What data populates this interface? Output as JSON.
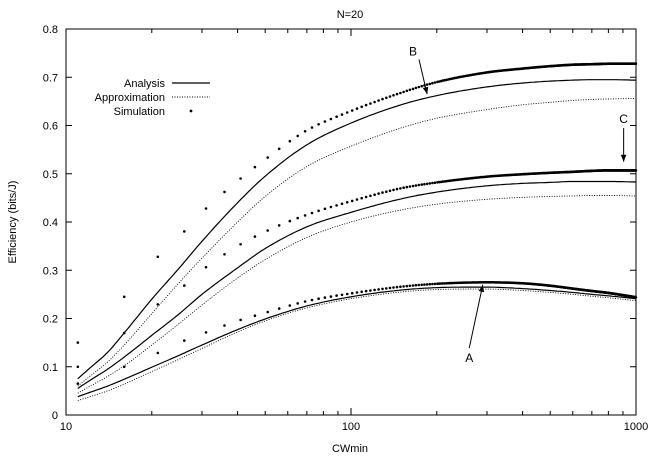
{
  "chart_data": {
    "type": "line",
    "title": "N=20",
    "xlabel": "CWmin",
    "ylabel": "Efficiency (bits/J)",
    "xscale": "log",
    "xlim": [
      10,
      1000
    ],
    "ylim": [
      0,
      0.8
    ],
    "xticks": [
      10,
      100,
      1000
    ],
    "yticks": [
      0,
      0.1,
      0.2,
      0.3,
      0.4,
      0.5,
      0.6,
      0.7,
      0.8
    ],
    "grid": false,
    "legend_position": "top-left",
    "legend": [
      "Analysis",
      "Approximation",
      "Simulation"
    ],
    "annotations": [
      {
        "label": "A",
        "x": 260,
        "y": 0.11,
        "target_x": 290,
        "target_y": 0.27
      },
      {
        "label": "B",
        "x": 165,
        "y": 0.745,
        "target_x": 185,
        "target_y": 0.665
      },
      {
        "label": "C",
        "x": 905,
        "y": 0.605,
        "target_x": 905,
        "target_y": 0.525
      }
    ],
    "x_sample": [
      11,
      12,
      14,
      16,
      20,
      25,
      30,
      40,
      50,
      70,
      100,
      150,
      200,
      300,
      400,
      500,
      600,
      700,
      800,
      1000
    ],
    "groups": [
      {
        "label": "A",
        "analysis": [
          0.038,
          0.046,
          0.06,
          0.074,
          0.099,
          0.124,
          0.145,
          0.177,
          0.199,
          0.226,
          0.245,
          0.259,
          0.264,
          0.265,
          0.262,
          0.258,
          0.254,
          0.25,
          0.247,
          0.241
        ],
        "approximation": [
          0.03,
          0.037,
          0.05,
          0.064,
          0.09,
          0.116,
          0.138,
          0.172,
          0.195,
          0.222,
          0.241,
          0.255,
          0.26,
          0.261,
          0.258,
          0.254,
          0.25,
          0.246,
          0.243,
          0.237
        ],
        "simulation": [
          0.065,
          0.075,
          0.085,
          0.1,
          0.123,
          0.15,
          0.168,
          0.195,
          0.212,
          0.236,
          0.252,
          0.266,
          0.272,
          0.275,
          0.273,
          0.268,
          0.262,
          0.257,
          0.253,
          0.244
        ]
      },
      {
        "label": "C",
        "analysis": [
          0.055,
          0.07,
          0.095,
          0.12,
          0.165,
          0.21,
          0.25,
          0.305,
          0.345,
          0.39,
          0.42,
          0.448,
          0.462,
          0.475,
          0.48,
          0.482,
          0.484,
          0.484,
          0.484,
          0.483
        ],
        "approximation": [
          0.045,
          0.058,
          0.08,
          0.102,
          0.145,
          0.19,
          0.228,
          0.284,
          0.322,
          0.368,
          0.4,
          0.425,
          0.437,
          0.447,
          0.451,
          0.453,
          0.454,
          0.455,
          0.455,
          0.454
        ],
        "simulation": [
          0.1,
          0.115,
          0.135,
          0.17,
          0.22,
          0.26,
          0.3,
          0.35,
          0.38,
          0.415,
          0.443,
          0.47,
          0.482,
          0.494,
          0.499,
          0.502,
          0.504,
          0.506,
          0.507,
          0.507
        ]
      },
      {
        "label": "B",
        "analysis": [
          0.075,
          0.095,
          0.13,
          0.17,
          0.24,
          0.305,
          0.36,
          0.44,
          0.495,
          0.56,
          0.605,
          0.643,
          0.662,
          0.68,
          0.688,
          0.692,
          0.694,
          0.695,
          0.695,
          0.694
        ],
        "approximation": [
          0.06,
          0.078,
          0.11,
          0.145,
          0.21,
          0.275,
          0.325,
          0.4,
          0.453,
          0.515,
          0.557,
          0.595,
          0.615,
          0.633,
          0.643,
          0.648,
          0.652,
          0.654,
          0.655,
          0.656
        ],
        "simulation": [
          0.15,
          0.175,
          0.21,
          0.245,
          0.315,
          0.37,
          0.42,
          0.485,
          0.53,
          0.59,
          0.63,
          0.668,
          0.69,
          0.71,
          0.718,
          0.723,
          0.726,
          0.727,
          0.728,
          0.728
        ]
      }
    ]
  }
}
